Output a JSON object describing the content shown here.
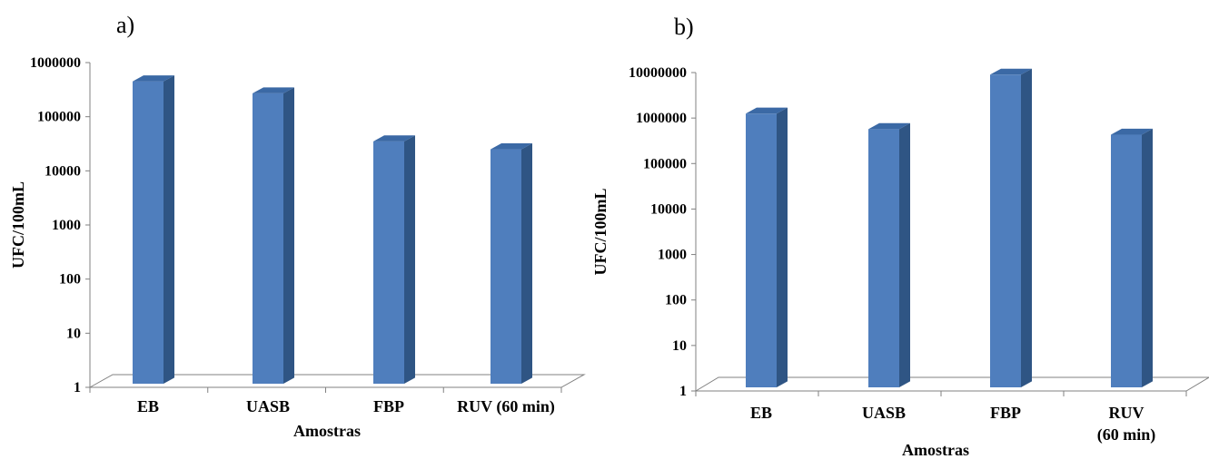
{
  "colors": {
    "bar_front": "#4F7EBD",
    "bar_side": "#2F5584",
    "bar_top": "#3B69A5",
    "axis": "#808080"
  },
  "chart_data": [
    {
      "type": "bar",
      "panel_label": "a)",
      "categories": [
        [
          "EB"
        ],
        [
          "UASB"
        ],
        [
          "FBP"
        ],
        [
          "RUV (60 min)"
        ]
      ],
      "values": [
        450000,
        270000,
        35000,
        25000
      ],
      "yscale": "log",
      "ylim": [
        1,
        1000000
      ],
      "yticks": [
        "1",
        "10",
        "100",
        "1000",
        "10000",
        "100000",
        "1000000"
      ],
      "ylabel": "UFC/100mL",
      "xlabel": "Amostras",
      "grid": false,
      "legend": false
    },
    {
      "type": "bar",
      "panel_label": "b)",
      "categories": [
        [
          "EB"
        ],
        [
          "UASB"
        ],
        [
          "FBP"
        ],
        [
          "RUV",
          "(60 min)"
        ]
      ],
      "values": [
        1250000,
        570000,
        9000000,
        430000
      ],
      "yscale": "log",
      "ylim": [
        1,
        10000000
      ],
      "yticks": [
        "1",
        "10",
        "100",
        "1000",
        "10000",
        "100000",
        "1000000",
        "10000000"
      ],
      "ylabel": "UFC/100mL",
      "xlabel": "Amostras",
      "grid": false,
      "legend": false
    }
  ]
}
